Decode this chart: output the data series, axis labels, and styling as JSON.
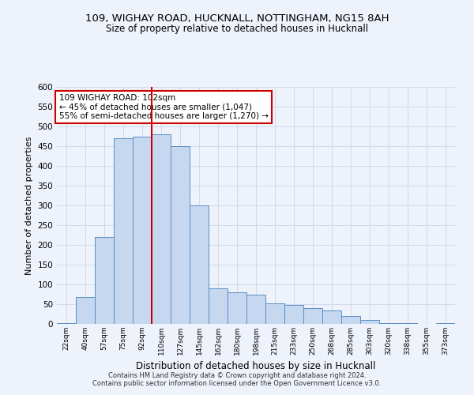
{
  "title1": "109, WIGHAY ROAD, HUCKNALL, NOTTINGHAM, NG15 8AH",
  "title2": "Size of property relative to detached houses in Hucknall",
  "xlabel": "Distribution of detached houses by size in Hucknall",
  "ylabel": "Number of detached properties",
  "footer1": "Contains HM Land Registry data © Crown copyright and database right 2024.",
  "footer2": "Contains public sector information licensed under the Open Government Licence v3.0.",
  "annotation_line1": "109 WIGHAY ROAD: 102sqm",
  "annotation_line2": "← 45% of detached houses are smaller (1,047)",
  "annotation_line3": "55% of semi-detached houses are larger (1,270) →",
  "bar_color": "#c5d8f0",
  "bar_edge_color": "#5b8ec4",
  "highlight_color": "#cc0000",
  "categories": [
    "22sqm",
    "40sqm",
    "57sqm",
    "75sqm",
    "92sqm",
    "110sqm",
    "127sqm",
    "145sqm",
    "162sqm",
    "180sqm",
    "198sqm",
    "215sqm",
    "233sqm",
    "250sqm",
    "268sqm",
    "285sqm",
    "303sqm",
    "320sqm",
    "338sqm",
    "355sqm",
    "373sqm"
  ],
  "values": [
    2,
    68,
    220,
    470,
    475,
    480,
    450,
    300,
    90,
    80,
    75,
    52,
    48,
    40,
    35,
    20,
    10,
    2,
    2,
    0,
    2
  ],
  "red_line_bar_index": 5,
  "ylim": [
    0,
    600
  ],
  "ytick_step": 50,
  "grid_color": "#ccd6e8",
  "bg_color": "#eef2fa"
}
